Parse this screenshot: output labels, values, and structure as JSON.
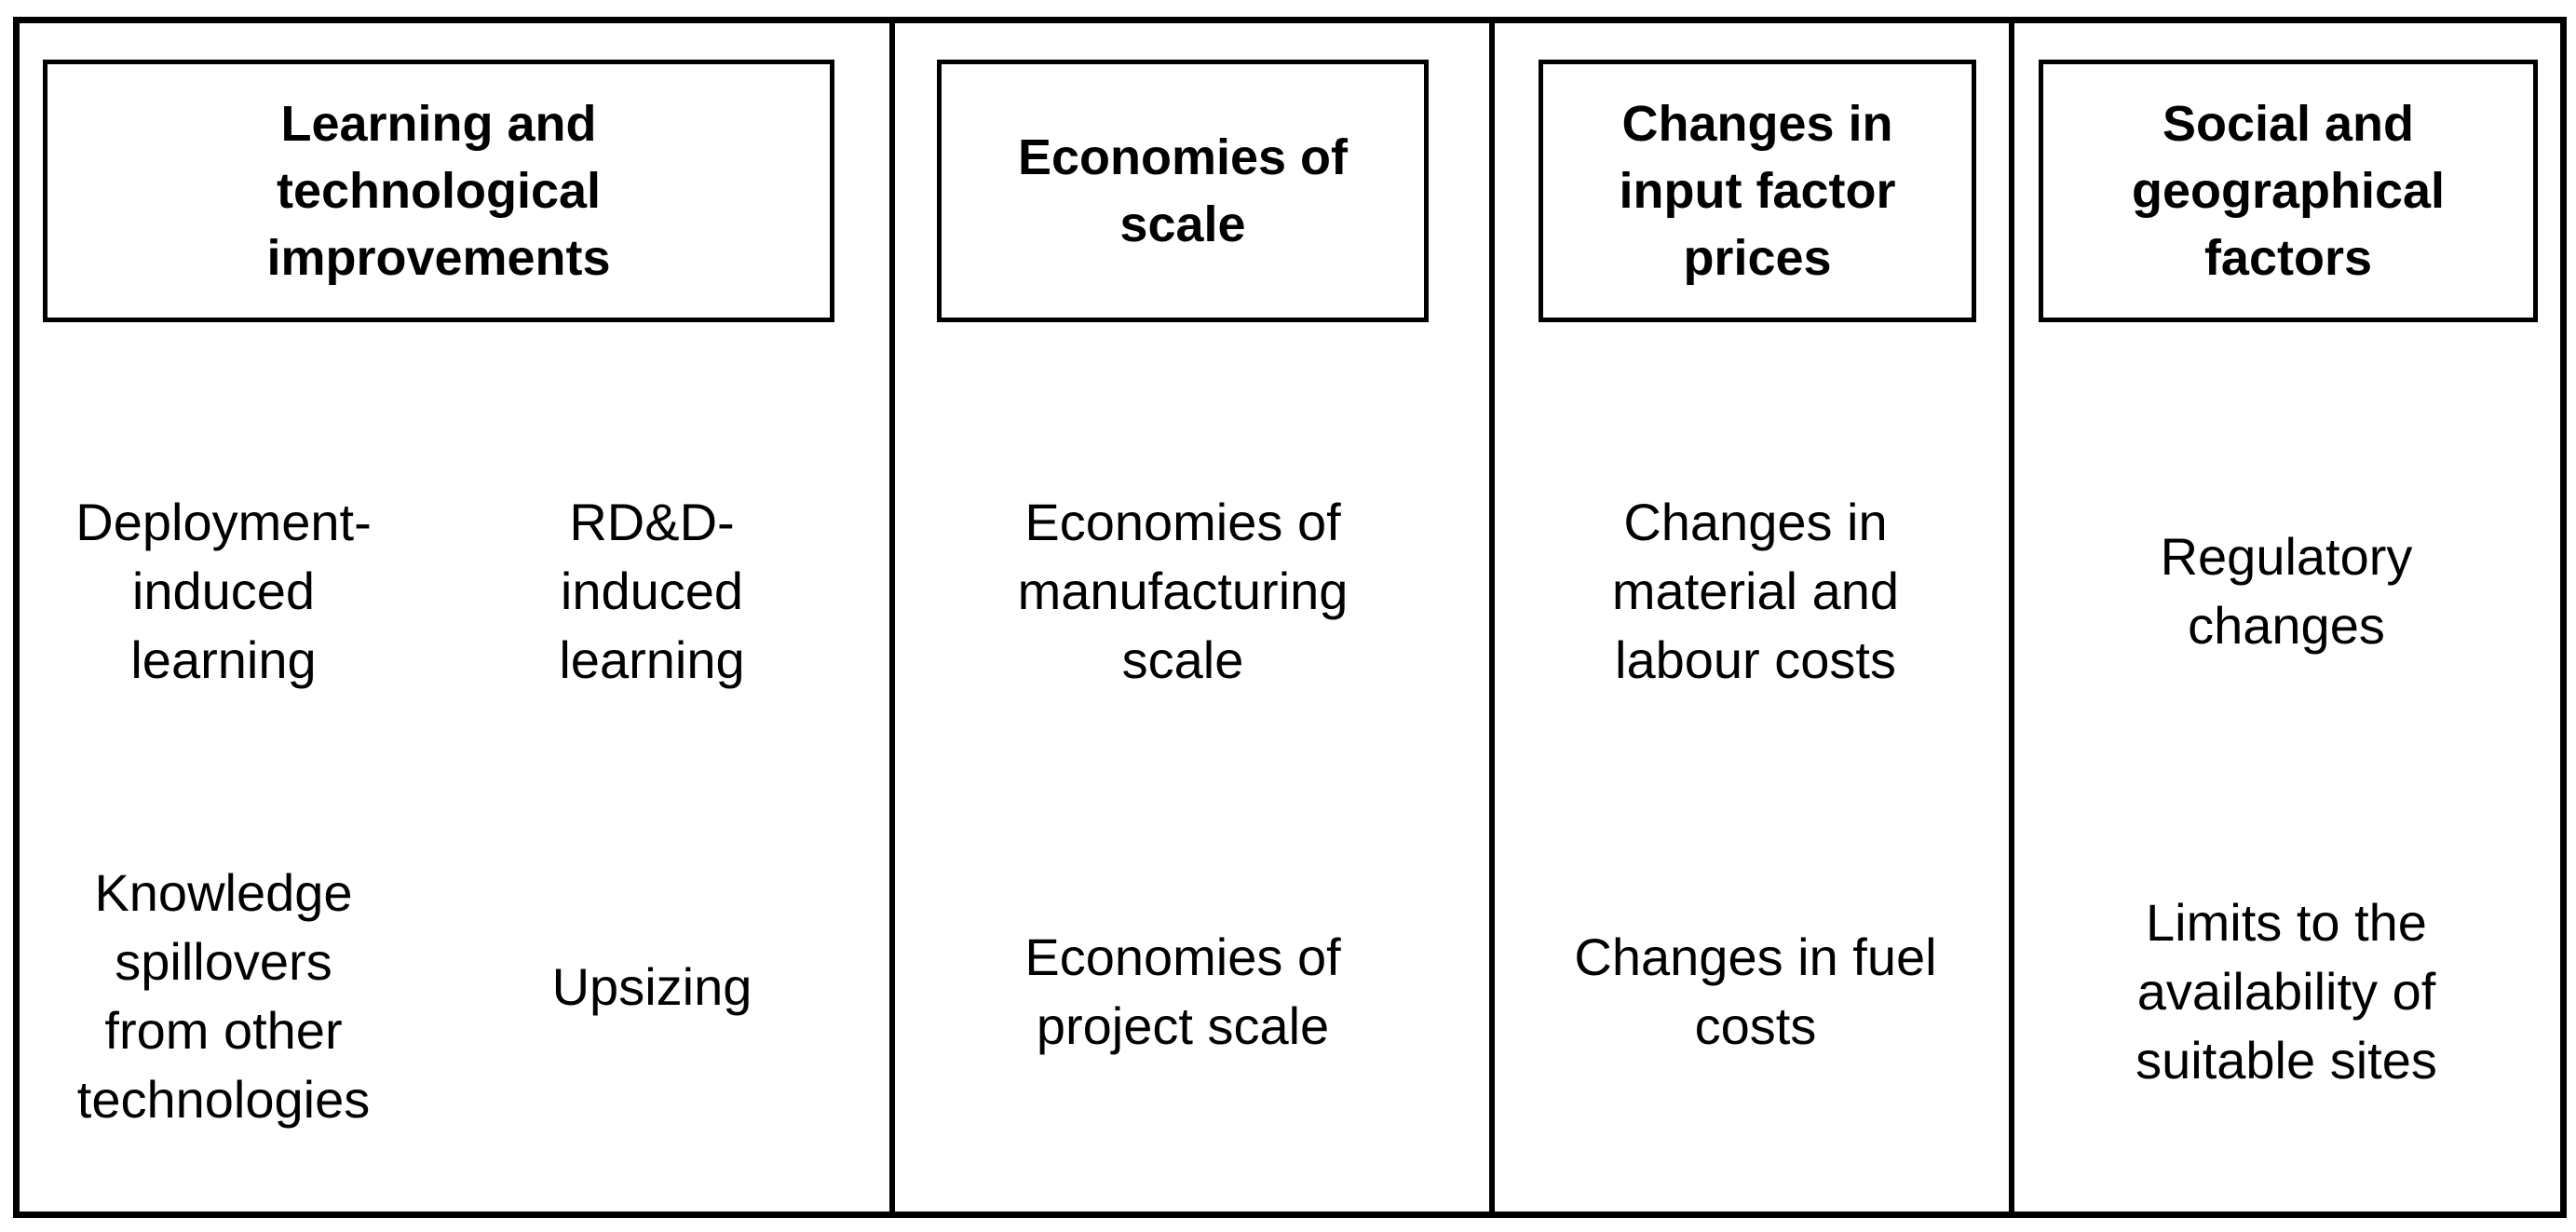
{
  "columns": [
    {
      "header": "Learning and\ntechnological\nimprovements",
      "items": [
        "Deployment-\ninduced\nlearning",
        "RD&D-\ninduced\nlearning",
        "Knowledge\nspillovers\nfrom other\ntechnologies",
        "Upsizing"
      ]
    },
    {
      "header": "Economies of\nscale",
      "items": [
        "Economies of\nmanufacturing\nscale",
        "Economies of\nproject scale"
      ]
    },
    {
      "header": "Changes in\ninput factor\nprices",
      "items": [
        "Changes in\nmaterial and\nlabour costs",
        "Changes in fuel\ncosts"
      ]
    },
    {
      "header": "Social and\ngeographical\nfactors",
      "items": [
        "Regulatory\nchanges",
        "Limits to the\navailability of\nsuitable sites"
      ]
    }
  ]
}
